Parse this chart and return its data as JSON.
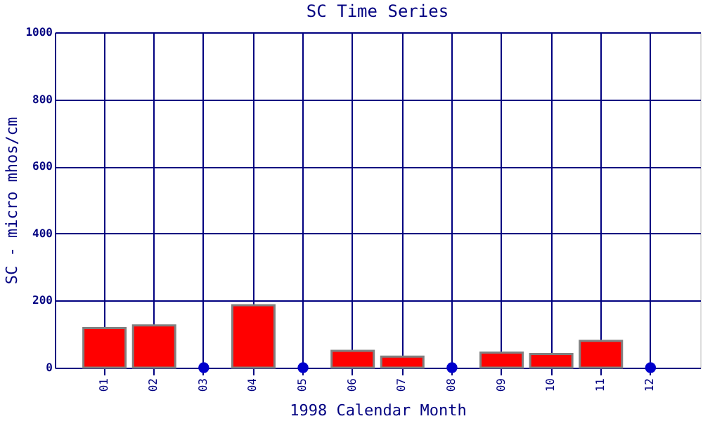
{
  "chart_data": {
    "type": "bar",
    "title": "SC Time Series",
    "xlabel": "1998 Calendar Month",
    "ylabel": "SC - micro mhos/cm",
    "categories": [
      "01",
      "02",
      "03",
      "04",
      "05",
      "06",
      "07",
      "08",
      "09",
      "10",
      "11",
      "12"
    ],
    "series": [
      {
        "color": "#ff0000",
        "values": [
          118,
          126,
          null,
          186,
          null,
          50,
          33,
          null,
          45,
          41,
          80,
          null
        ]
      },
      {
        "type": "scatter",
        "color": "#0000cc",
        "x": [
          "03",
          "05",
          "08",
          "12"
        ],
        "values": [
          0,
          0,
          0,
          0
        ]
      }
    ],
    "ylim": [
      0,
      1000
    ],
    "yticks": [
      0,
      200,
      400,
      600,
      800,
      1000
    ],
    "grid": true,
    "marker": "circle"
  }
}
